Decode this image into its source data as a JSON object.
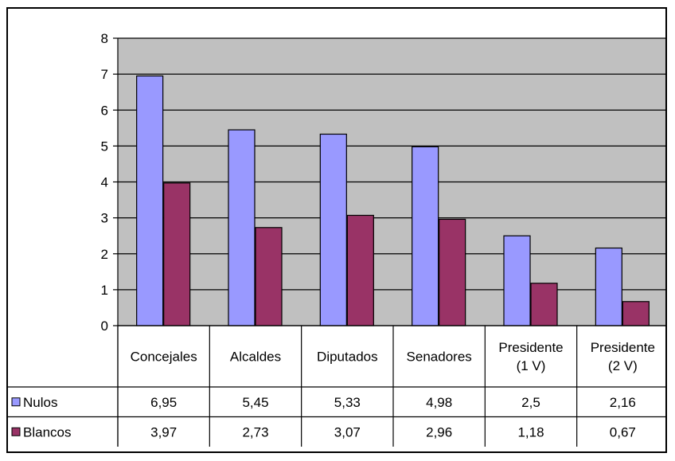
{
  "chart_data": {
    "type": "bar",
    "categories": [
      [
        "Concejales"
      ],
      [
        "Alcaldes"
      ],
      [
        "Diputados"
      ],
      [
        "Senadores"
      ],
      [
        "Presidente",
        "(1 V)"
      ],
      [
        "Presidente",
        "(2 V)"
      ]
    ],
    "series": [
      {
        "name": "Nulos",
        "color": "#9999ff",
        "values": [
          6.95,
          5.45,
          5.33,
          4.98,
          2.5,
          2.16
        ],
        "labels": [
          "6,95",
          "5,45",
          "5,33",
          "4,98",
          "2,5",
          "2,16"
        ]
      },
      {
        "name": "Blancos",
        "color": "#993366",
        "values": [
          3.97,
          2.73,
          3.07,
          2.96,
          1.18,
          0.67
        ],
        "labels": [
          "3,97",
          "2,73",
          "3,07",
          "2,96",
          "1,18",
          "0,67"
        ]
      }
    ],
    "ylim": [
      0,
      8
    ],
    "yticks": [
      "0",
      "1",
      "2",
      "3",
      "4",
      "5",
      "6",
      "7",
      "8"
    ],
    "grid": true,
    "plot_background": "#c0c0c0",
    "legend": "data-table",
    "title": "",
    "xlabel": "",
    "ylabel": ""
  }
}
